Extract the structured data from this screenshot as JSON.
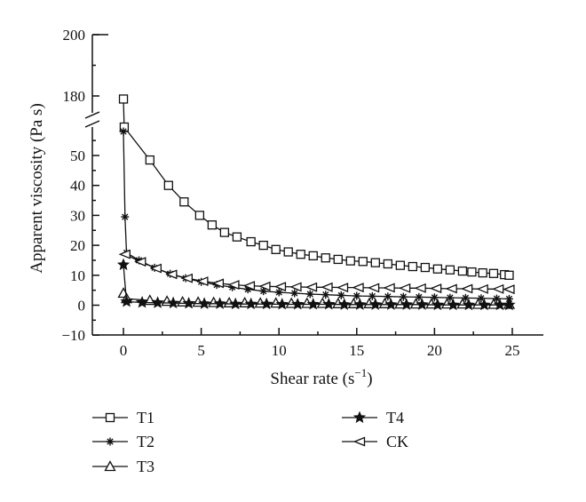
{
  "chart_data": {
    "type": "line",
    "xlabel": "Shear rate (s",
    "xlabel_sup": "−1",
    "xlabel_end": ")",
    "ylabel": "Apparent viscosity (Pa s)",
    "xlim": [
      -2,
      27
    ],
    "xticks": [
      "0",
      "5",
      "10",
      "15",
      "20",
      "25"
    ],
    "ylim_lower": [
      -10,
      60
    ],
    "ylim_upper": [
      170,
      200
    ],
    "yticks_lower": [
      "−10",
      "0",
      "10",
      "20",
      "30",
      "40",
      "50"
    ],
    "yticks_upper": [
      "180",
      "200"
    ],
    "axis_break": true,
    "legend_position": "bottom",
    "series": [
      {
        "name": "T1",
        "marker": "square",
        "x": [
          0,
          0.05,
          1.7,
          2.9,
          3.9,
          4.9,
          5.7,
          6.5,
          7.3,
          8.2,
          9.0,
          9.8,
          10.6,
          11.4,
          12.2,
          13.0,
          13.8,
          14.6,
          15.4,
          16.2,
          17.0,
          17.8,
          18.6,
          19.4,
          20.2,
          21.0,
          21.8,
          22.4,
          23.1,
          23.8,
          24.5,
          24.8
        ],
        "y": [
          179,
          59.5,
          48.5,
          40,
          34.5,
          30,
          26.8,
          24.3,
          22.8,
          21.2,
          20,
          18.6,
          17.8,
          17,
          16.5,
          15.8,
          15.3,
          14.8,
          14.6,
          14.2,
          13.8,
          13.3,
          12.9,
          12.6,
          12.1,
          11.8,
          11.4,
          11.1,
          10.8,
          10.6,
          10.2,
          10
        ]
      },
      {
        "name": "T2",
        "marker": "asterisk",
        "x": [
          0,
          0.1,
          0.2,
          1.0,
          2.0,
          3.0,
          4.0,
          5.0,
          6.0,
          7.0,
          8.0,
          9.0,
          10.0,
          11.0,
          12.0,
          13.0,
          14.0,
          15.0,
          16.0,
          17.0,
          18.0,
          19.0,
          20.0,
          21.0,
          22.0,
          23.0,
          24.0,
          24.8
        ],
        "y": [
          58,
          29.5,
          17.5,
          15,
          12.5,
          10.5,
          9,
          7.8,
          6.8,
          6,
          5.3,
          4.7,
          4.3,
          4,
          3.7,
          3.5,
          3.3,
          3.1,
          3,
          2.9,
          2.8,
          2.7,
          2.6,
          2.5,
          2.4,
          2.3,
          2.2,
          2.1
        ]
      },
      {
        "name": "T3",
        "marker": "triangle-up",
        "x": [
          0,
          0.2,
          1.7,
          2.8,
          3.8,
          4.8,
          5.8,
          6.8,
          7.8,
          8.8,
          9.8,
          10.8,
          11.8,
          12.8,
          13.8,
          14.8,
          15.8,
          16.8,
          17.8,
          18.8,
          19.8,
          20.8,
          21.8,
          22.8,
          23.8,
          24.8
        ],
        "y": [
          4,
          2.2,
          1.6,
          1.3,
          1.1,
          1.0,
          0.9,
          0.8,
          0.8,
          0.7,
          0.7,
          0.6,
          0.6,
          0.6,
          0.5,
          0.5,
          0.5,
          0.5,
          0.4,
          0.4,
          0.4,
          0.4,
          0.4,
          0.3,
          0.3,
          0.3
        ]
      },
      {
        "name": "T4",
        "marker": "star",
        "x": [
          0,
          0.2,
          1.2,
          2.2,
          3.2,
          4.2,
          5.2,
          6.2,
          7.2,
          8.2,
          9.2,
          10.2,
          11.2,
          12.2,
          13.2,
          14.2,
          15.2,
          16.2,
          17.2,
          18.2,
          19.2,
          20.2,
          21.2,
          22.2,
          23.2,
          24.2,
          24.8
        ],
        "y": [
          13.5,
          1.2,
          0.9,
          0.8,
          0.7,
          0.6,
          0.5,
          0.5,
          0.4,
          0.4,
          0.4,
          0.3,
          0.3,
          0.3,
          0.3,
          0.2,
          0.2,
          0.2,
          0.2,
          0.2,
          0.2,
          0.1,
          0.1,
          0.1,
          0.1,
          0.1,
          0.1
        ]
      },
      {
        "name": "CK",
        "marker": "triangle-left",
        "x": [
          0.1,
          1.1,
          2.1,
          3.1,
          4.1,
          5.1,
          6.1,
          7.1,
          8.1,
          9.1,
          10.1,
          11.1,
          12.1,
          13.1,
          14.1,
          15.1,
          16.1,
          17.1,
          18.1,
          19.1,
          20.1,
          21.1,
          22.1,
          23.1,
          24.1,
          24.8
        ],
        "y": [
          17,
          14.5,
          12.3,
          10.3,
          9,
          8,
          7.3,
          6.8,
          6.5,
          6.3,
          6.2,
          6.1,
          6,
          6,
          5.9,
          5.9,
          5.8,
          5.8,
          5.7,
          5.7,
          5.6,
          5.5,
          5.5,
          5.4,
          5.4,
          5.3
        ]
      }
    ]
  }
}
